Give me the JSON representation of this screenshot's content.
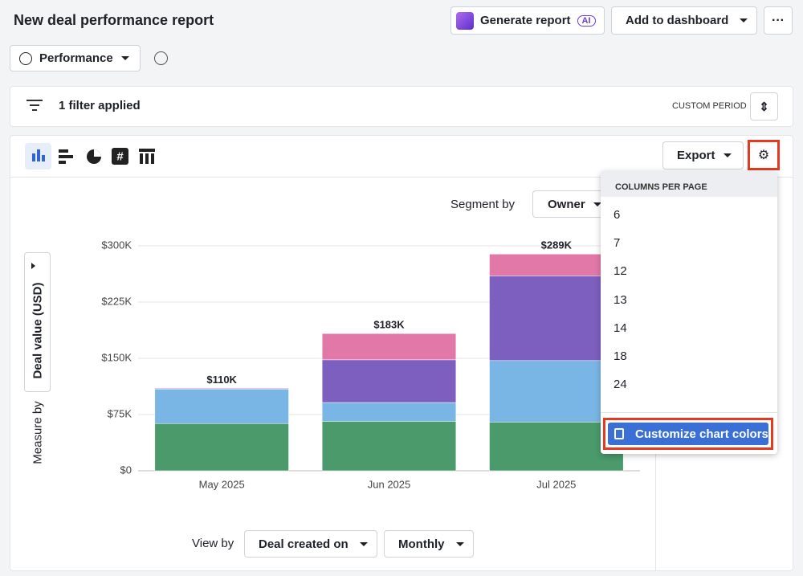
{
  "header": {
    "title": "New deal performance report",
    "buttons": [
      "Generate report",
      "AI",
      "Add to dashboard"
    ]
  },
  "view": {
    "dropdown": "Performance"
  },
  "filter": {
    "text": "1 filter applied",
    "period": "CUSTOM PERIOD"
  },
  "toolbar": {
    "export": "Export"
  },
  "segment": {
    "label": "Segment by",
    "value": "Owner"
  },
  "measure": {
    "label": "Measure by",
    "value": "Deal value (USD)"
  },
  "view_by": {
    "label": "View by",
    "field": "Deal created on",
    "interval": "Monthly"
  },
  "menu": {
    "header": "COLUMNS PER PAGE",
    "items": [
      "6",
      "7",
      "12",
      "13",
      "14",
      "18",
      "24"
    ],
    "action": "Customize chart colors"
  },
  "chart_data": {
    "type": "stacked_bar",
    "categories": [
      "May 2025",
      "Jun 2025",
      "Jul 2025"
    ],
    "series": [
      {
        "color": "#4a9a6b",
        "values": [
          63000,
          66000,
          65000
        ]
      },
      {
        "color": "#7ab6e5",
        "values": [
          46000,
          25000,
          82000
        ]
      },
      {
        "color": "#7c5fbe",
        "values": [
          0,
          57000,
          113000
        ]
      },
      {
        "color": "#e278a7",
        "values": [
          1000,
          35000,
          29000
        ]
      }
    ],
    "totals": [
      110000,
      183000,
      289000
    ],
    "total_labels": [
      "$110K",
      "$183K",
      "$289K"
    ],
    "ylim": [
      0,
      300000
    ],
    "yticks": [
      {
        "value": 0,
        "label": "$0"
      },
      {
        "value": 75000,
        "label": "$75K"
      },
      {
        "value": 150000,
        "label": "$150K"
      },
      {
        "value": 225000,
        "label": "$225K"
      },
      {
        "value": 300000,
        "label": "$300K"
      }
    ],
    "grid": true
  }
}
